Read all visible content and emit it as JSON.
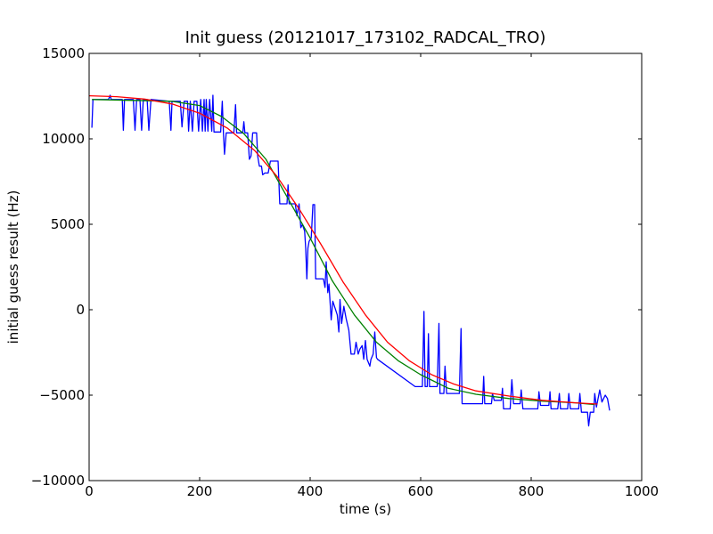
{
  "colors": {
    "background": "#ffffff",
    "axes": "#000000",
    "raw": "#0000ff",
    "smoothed": "#008000",
    "fit": "#ff0000"
  },
  "chart_data": {
    "type": "line",
    "title": "Init guess (20121017_173102_RADCAL_TRO)",
    "xlabel": "time (s)",
    "ylabel": "initial guess result (Hz)",
    "xlim": [
      0,
      1000
    ],
    "ylim": [
      -10000,
      15000
    ],
    "xticks": [
      0,
      200,
      400,
      600,
      800,
      1000
    ],
    "yticks": [
      -10000,
      -5000,
      0,
      5000,
      10000,
      15000
    ],
    "xtick_labels": [
      "0",
      "200",
      "400",
      "600",
      "800",
      "1000"
    ],
    "ytick_labels": [
      "−10000",
      "−5000",
      "0",
      "5000",
      "10000",
      "15000"
    ],
    "grid": false,
    "series": [
      {
        "color": "#0000ff",
        "points": [
          [
            5,
            10650
          ],
          [
            7,
            12300
          ],
          [
            35,
            12300
          ],
          [
            38,
            12550
          ],
          [
            40,
            12300
          ],
          [
            60,
            12300
          ],
          [
            62,
            10500
          ],
          [
            64,
            12300
          ],
          [
            80,
            12300
          ],
          [
            83,
            10500
          ],
          [
            86,
            12300
          ],
          [
            92,
            12300
          ],
          [
            95,
            10500
          ],
          [
            98,
            12300
          ],
          [
            105,
            12300
          ],
          [
            108,
            10500
          ],
          [
            112,
            12300
          ],
          [
            145,
            12200
          ],
          [
            148,
            10500
          ],
          [
            150,
            12200
          ],
          [
            165,
            12200
          ],
          [
            168,
            10700
          ],
          [
            172,
            12200
          ],
          [
            178,
            12200
          ],
          [
            180,
            10450
          ],
          [
            183,
            12200
          ],
          [
            187,
            10450
          ],
          [
            190,
            12200
          ],
          [
            195,
            12200
          ],
          [
            198,
            10450
          ],
          [
            202,
            12300
          ],
          [
            205,
            10450
          ],
          [
            208,
            12300
          ],
          [
            210,
            10450
          ],
          [
            212,
            12300
          ],
          [
            215,
            10450
          ],
          [
            218,
            12300
          ],
          [
            222,
            10450
          ],
          [
            224,
            12550
          ],
          [
            226,
            10400
          ],
          [
            238,
            10400
          ],
          [
            241,
            12200
          ],
          [
            243,
            10350
          ],
          [
            245,
            9100
          ],
          [
            248,
            10350
          ],
          [
            262,
            10350
          ],
          [
            265,
            12000
          ],
          [
            267,
            10350
          ],
          [
            278,
            10350
          ],
          [
            280,
            11000
          ],
          [
            282,
            10350
          ],
          [
            287,
            10350
          ],
          [
            290,
            8800
          ],
          [
            293,
            9000
          ],
          [
            296,
            10350
          ],
          [
            303,
            10350
          ],
          [
            305,
            9000
          ],
          [
            308,
            8400
          ],
          [
            312,
            8400
          ],
          [
            314,
            7900
          ],
          [
            318,
            8000
          ],
          [
            324,
            8000
          ],
          [
            328,
            8700
          ],
          [
            342,
            8700
          ],
          [
            345,
            6200
          ],
          [
            358,
            6200
          ],
          [
            360,
            7300
          ],
          [
            362,
            6200
          ],
          [
            373,
            6200
          ],
          [
            376,
            5500
          ],
          [
            380,
            6200
          ],
          [
            383,
            4800
          ],
          [
            386,
            5000
          ],
          [
            390,
            4600
          ],
          [
            392,
            3600
          ],
          [
            394,
            1800
          ],
          [
            396,
            3600
          ],
          [
            398,
            4000
          ],
          [
            402,
            4200
          ],
          [
            405,
            6150
          ],
          [
            408,
            6150
          ],
          [
            410,
            1800
          ],
          [
            424,
            1800
          ],
          [
            427,
            1300
          ],
          [
            429,
            2800
          ],
          [
            432,
            1000
          ],
          [
            434,
            1500
          ],
          [
            438,
            -600
          ],
          [
            441,
            500
          ],
          [
            445,
            100
          ],
          [
            449,
            -300
          ],
          [
            452,
            -1300
          ],
          [
            454,
            600
          ],
          [
            457,
            -800
          ],
          [
            461,
            200
          ],
          [
            465,
            -500
          ],
          [
            470,
            -1200
          ],
          [
            474,
            -2600
          ],
          [
            480,
            -2600
          ],
          [
            483,
            -1900
          ],
          [
            487,
            -2600
          ],
          [
            490,
            -2300
          ],
          [
            494,
            -2100
          ],
          [
            497,
            -2900
          ],
          [
            500,
            -1800
          ],
          [
            503,
            -2900
          ],
          [
            508,
            -3300
          ],
          [
            510,
            -2900
          ],
          [
            514,
            -2600
          ],
          [
            517,
            -1300
          ],
          [
            520,
            -2800
          ],
          [
            522,
            -2900
          ],
          [
            590,
            -4500
          ],
          [
            603,
            -4500
          ],
          [
            606,
            -100
          ],
          [
            608,
            -4500
          ],
          [
            612,
            -4500
          ],
          [
            614,
            -1400
          ],
          [
            616,
            -4500
          ],
          [
            630,
            -4500
          ],
          [
            633,
            -800
          ],
          [
            635,
            -4900
          ],
          [
            642,
            -4900
          ],
          [
            644,
            -3300
          ],
          [
            647,
            -4900
          ],
          [
            670,
            -4900
          ],
          [
            673,
            -1100
          ],
          [
            675,
            -5500
          ],
          [
            712,
            -5500
          ],
          [
            714,
            -3900
          ],
          [
            716,
            -5500
          ],
          [
            728,
            -5500
          ],
          [
            730,
            -4900
          ],
          [
            733,
            -5300
          ],
          [
            746,
            -5300
          ],
          [
            748,
            -4600
          ],
          [
            750,
            -5800
          ],
          [
            762,
            -5800
          ],
          [
            765,
            -4100
          ],
          [
            768,
            -5500
          ],
          [
            780,
            -5500
          ],
          [
            782,
            -4700
          ],
          [
            785,
            -5800
          ],
          [
            812,
            -5800
          ],
          [
            814,
            -4800
          ],
          [
            817,
            -5600
          ],
          [
            832,
            -5600
          ],
          [
            834,
            -4800
          ],
          [
            836,
            -5800
          ],
          [
            848,
            -5800
          ],
          [
            851,
            -4900
          ],
          [
            853,
            -5800
          ],
          [
            866,
            -5800
          ],
          [
            868,
            -4900
          ],
          [
            871,
            -5800
          ],
          [
            886,
            -5800
          ],
          [
            888,
            -4900
          ],
          [
            891,
            -6000
          ],
          [
            902,
            -6000
          ],
          [
            904,
            -6800
          ],
          [
            907,
            -6000
          ],
          [
            913,
            -6000
          ],
          [
            915,
            -4900
          ],
          [
            918,
            -5700
          ],
          [
            924,
            -4700
          ],
          [
            928,
            -5400
          ],
          [
            934,
            -5000
          ],
          [
            938,
            -5200
          ],
          [
            942,
            -5900
          ]
        ]
      },
      {
        "color": "#008000",
        "points": [
          [
            5,
            12300
          ],
          [
            80,
            12250
          ],
          [
            150,
            12200
          ],
          [
            200,
            11950
          ],
          [
            240,
            11300
          ],
          [
            280,
            10300
          ],
          [
            320,
            8800
          ],
          [
            360,
            6500
          ],
          [
            400,
            4200
          ],
          [
            440,
            1700
          ],
          [
            480,
            -300
          ],
          [
            520,
            -1900
          ],
          [
            560,
            -3000
          ],
          [
            600,
            -3800
          ],
          [
            650,
            -4600
          ],
          [
            700,
            -4950
          ],
          [
            760,
            -5200
          ],
          [
            820,
            -5350
          ],
          [
            880,
            -5450
          ],
          [
            915,
            -5550
          ]
        ]
      },
      {
        "color": "#ff0000",
        "points": [
          [
            0,
            12520
          ],
          [
            50,
            12470
          ],
          [
            100,
            12330
          ],
          [
            150,
            12040
          ],
          [
            200,
            11500
          ],
          [
            250,
            10630
          ],
          [
            300,
            9300
          ],
          [
            340,
            7800
          ],
          [
            380,
            5900
          ],
          [
            420,
            3800
          ],
          [
            460,
            1600
          ],
          [
            500,
            -300
          ],
          [
            540,
            -1900
          ],
          [
            580,
            -3000
          ],
          [
            620,
            -3800
          ],
          [
            660,
            -4350
          ],
          [
            700,
            -4750
          ],
          [
            760,
            -5050
          ],
          [
            820,
            -5300
          ],
          [
            880,
            -5450
          ],
          [
            920,
            -5520
          ]
        ]
      }
    ]
  }
}
